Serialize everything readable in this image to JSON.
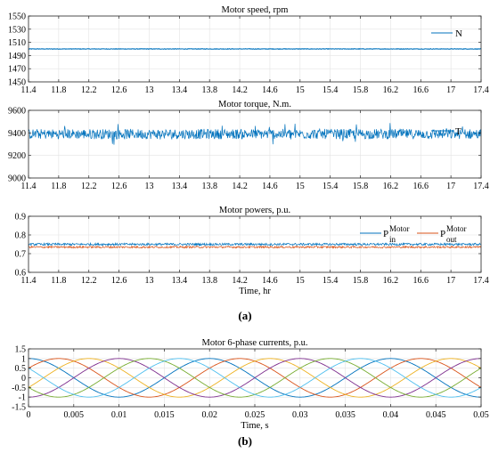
{
  "panel_labels": {
    "a": "(a)",
    "b": "(b)"
  },
  "chart_data": [
    {
      "type": "line",
      "title": "Motor speed, rpm",
      "xlabel": "",
      "ylabel": "",
      "xlim": [
        11.4,
        17.4
      ],
      "ylim": [
        1450,
        1550
      ],
      "xticks": [
        11.4,
        11.8,
        12.2,
        12.6,
        13,
        13.4,
        13.8,
        14.2,
        14.6,
        15,
        15.4,
        15.8,
        16.2,
        16.6,
        17,
        17.4
      ],
      "yticks": [
        1450,
        1470,
        1490,
        1510,
        1530,
        1550
      ],
      "grid": true,
      "legend_position": "top-right",
      "series": [
        {
          "name": "N",
          "color": "#0072BD",
          "level": 1500,
          "noise": 0.4
        }
      ]
    },
    {
      "type": "line",
      "title": "Motor torque, N.m.",
      "xlabel": "",
      "ylabel": "",
      "xlim": [
        11.4,
        17.4
      ],
      "ylim": [
        9000,
        9600
      ],
      "xticks": [
        11.4,
        11.8,
        12.2,
        12.6,
        13,
        13.4,
        13.8,
        14.2,
        14.6,
        15,
        15.4,
        15.8,
        16.2,
        16.6,
        17,
        17.4
      ],
      "yticks": [
        9000,
        9200,
        9400,
        9600
      ],
      "grid": true,
      "legend_position": "top-right",
      "series": [
        {
          "name": "T",
          "color": "#0072BD",
          "level": 9390,
          "noise": 45
        }
      ]
    },
    {
      "type": "line",
      "title": "Motor powers, p.u.",
      "xlabel": "Time, hr",
      "ylabel": "",
      "xlim": [
        11.4,
        17.4
      ],
      "ylim": [
        0.6,
        0.9
      ],
      "xticks": [
        11.4,
        11.8,
        12.2,
        12.6,
        13,
        13.4,
        13.8,
        14.2,
        14.6,
        15,
        15.4,
        15.8,
        16.2,
        16.6,
        17,
        17.4
      ],
      "yticks": [
        0.6,
        0.7,
        0.8,
        0.9
      ],
      "grid": true,
      "legend_position": "top-right",
      "series": [
        {
          "name_base": "P",
          "name_sup": "Motor",
          "name_sub": "in",
          "color": "#0072BD",
          "level": 0.75,
          "noise": 0.006
        },
        {
          "name_base": "P",
          "name_sup": "Motor",
          "name_sub": "out",
          "color": "#D95319",
          "level": 0.735,
          "noise": 0.005
        }
      ]
    },
    {
      "type": "line",
      "title": "Motor 6-phase currents, p.u.",
      "xlabel": "Time, s",
      "ylabel": "",
      "xlim": [
        0,
        0.05
      ],
      "ylim": [
        -1.5,
        1.5
      ],
      "xticks": [
        0,
        0.005,
        0.01,
        0.015,
        0.02,
        0.025,
        0.03,
        0.035,
        0.04,
        0.045,
        0.05
      ],
      "yticks": [
        -1.5,
        -1,
        -0.5,
        0,
        0.5,
        1,
        1.5
      ],
      "grid": true,
      "frequency_hz": 50,
      "amplitude": 1,
      "series": [
        {
          "color": "#0072BD",
          "phase_deg": 90
        },
        {
          "color": "#D95319",
          "phase_deg": 30
        },
        {
          "color": "#EDB120",
          "phase_deg": -30
        },
        {
          "color": "#7E2F8E",
          "phase_deg": -90
        },
        {
          "color": "#77AC30",
          "phase_deg": -150
        },
        {
          "color": "#4DBEEE",
          "phase_deg": 150
        }
      ]
    }
  ]
}
